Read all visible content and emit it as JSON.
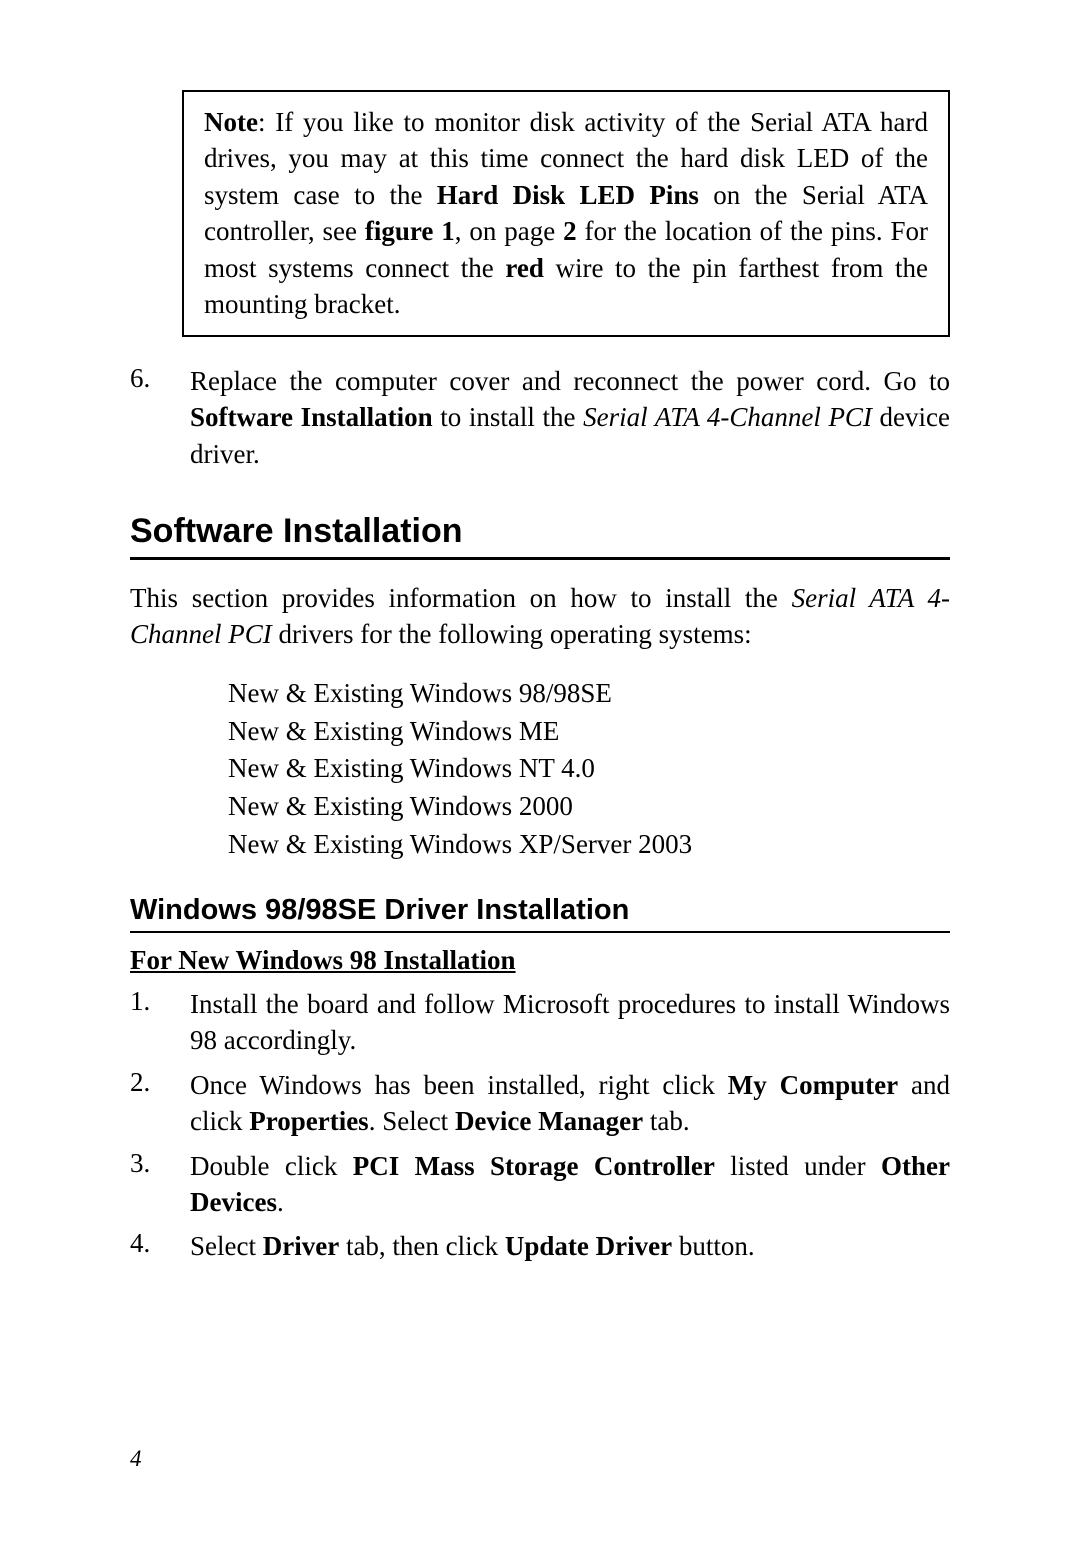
{
  "note": {
    "label": "Note",
    "text_pre": ":  If you like to monitor disk activity of the Serial ATA hard drives, you may at this time connect the hard disk LED of the system case to the ",
    "bold1": "Hard Disk LED Pins",
    "text_mid1": " on the Serial ATA controller, see ",
    "bold2": "figure 1",
    "text_mid2": ", on page ",
    "bold3": "2",
    "text_mid3": " for the location of the pins.   For most systems connect the ",
    "bold4": "red",
    "text_post": " wire to the pin farthest from the mounting bracket."
  },
  "step6": {
    "num": "6.",
    "pre": "Replace the computer cover and reconnect the power cord.  Go to ",
    "bold": "Software Installation",
    "mid": " to install the ",
    "italic": "Serial ATA 4-Channel PCI",
    "post": " device driver."
  },
  "h1": "Software Installation",
  "intro": {
    "pre": "This section provides information on how to install the ",
    "italic": "Serial ATA 4-Channel PCI",
    "post": " drivers for the following operating systems:"
  },
  "os": {
    "line1": "New & Existing Windows 98/98SE",
    "line2": "New & Existing Windows ME",
    "line3": "New & Existing Windows NT 4.0",
    "line4": "New & Existing Windows 2000",
    "line5": "New & Existing Windows XP/Server 2003"
  },
  "h2": "Windows 98/98SE Driver Installation",
  "h3": "For New Windows 98 Installation",
  "steps": {
    "s1": {
      "num": "1.",
      "text": "Install the board and follow Microsoft procedures to install Windows 98 accordingly."
    },
    "s2": {
      "num": "2.",
      "pre": "Once Windows has been installed, right click ",
      "b1": "My Computer",
      "mid1": " and click ",
      "b2": "Properties",
      "mid2": ".  Select ",
      "b3": "Device Manager",
      "post": " tab."
    },
    "s3": {
      "num": "3.",
      "pre": "Double click ",
      "b1": "PCI Mass Storage Controller",
      "mid": " listed under ",
      "b2": "Other Devices",
      "post": "."
    },
    "s4": {
      "num": "4.",
      "pre": "Select ",
      "b1": "Driver",
      "mid": " tab, then click ",
      "b2": "Update Driver",
      "post": " button."
    }
  },
  "pageNum": "4"
}
